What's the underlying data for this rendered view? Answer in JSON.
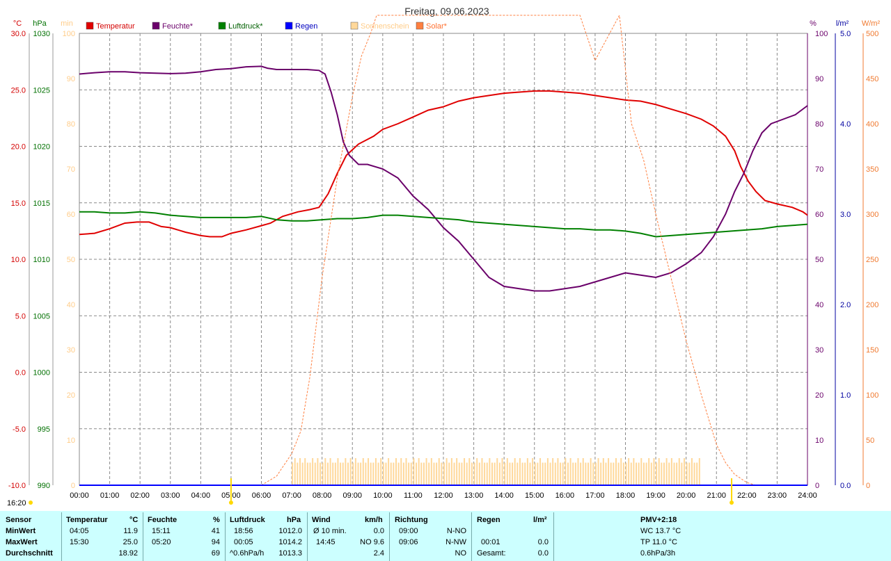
{
  "chart_data": {
    "type": "line",
    "title": "Freitag, 09.06.2023",
    "x_tick_labels": [
      "00:00",
      "01:00",
      "02:00",
      "03:00",
      "04:00",
      "05:00",
      "06:00",
      "07:00",
      "08:00",
      "09:00",
      "10:00",
      "11:00",
      "12:00",
      "13:00",
      "14:00",
      "15:00",
      "16:00",
      "17:00",
      "18:00",
      "19:00",
      "20:00",
      "21:00",
      "22:00",
      "23:00",
      "24:00"
    ],
    "x_range_hours": [
      0,
      24
    ],
    "grid": true,
    "legend_position": "top",
    "axes": {
      "temperature": {
        "unit": "°C",
        "range": [
          -10,
          30
        ],
        "ticks": [
          "30.0",
          "25.0",
          "20.0",
          "15.0",
          "10.0",
          "5.0",
          "0.0",
          "-5.0",
          "-10.0"
        ],
        "color": "#d40000"
      },
      "pressure": {
        "unit": "hPa",
        "range": [
          990,
          1030
        ],
        "ticks": [
          "1030",
          "1025",
          "1020",
          "1015",
          "1010",
          "1005",
          "1000",
          "995",
          "990"
        ],
        "color": "#007000"
      },
      "sunshine": {
        "unit": "min",
        "range": [
          0,
          100
        ],
        "ticks": [
          "100",
          "90",
          "80",
          "70",
          "60",
          "50",
          "40",
          "30",
          "20",
          "10",
          "0"
        ],
        "color": "#ffcc88"
      },
      "humidity": {
        "unit": "%",
        "range": [
          0,
          100
        ],
        "ticks": [
          "100",
          "90",
          "80",
          "70",
          "60",
          "50",
          "40",
          "30",
          "20",
          "10",
          "0"
        ],
        "color": "#6a006a"
      },
      "rain": {
        "unit": "l/m²",
        "range": [
          0,
          5
        ],
        "ticks": [
          "5.0",
          "4.0",
          "3.0",
          "2.0",
          "1.0",
          "0.0"
        ],
        "color": "#0000a0"
      },
      "solar": {
        "unit": "W/m²",
        "range": [
          0,
          500
        ],
        "ticks": [
          "500",
          "450",
          "400",
          "350",
          "300",
          "250",
          "200",
          "150",
          "100",
          "50",
          "0"
        ],
        "color": "#f07a30"
      }
    },
    "legend": [
      {
        "name": "Temperatur",
        "color": "#e00000",
        "text_color": "#d40000"
      },
      {
        "name": "Feuchte*",
        "color": "#6a006a",
        "text_color": "#6a006a"
      },
      {
        "name": "Luftdruck*",
        "color": "#008000",
        "text_color": "#006000"
      },
      {
        "name": "Regen",
        "color": "#0000ff",
        "text_color": "#0000c0"
      },
      {
        "name": "Sonnenschein",
        "color": "#ffd89a",
        "text_color": "#ffcc88"
      },
      {
        "name": "Solar*",
        "color": "#ff7f3f",
        "text_color": "#ff7030"
      }
    ],
    "series": [
      {
        "name": "Temperatur",
        "axis": "temperature",
        "color": "#e00000",
        "x": [
          0,
          0.5,
          1,
          1.5,
          1.9,
          2.3,
          2.7,
          3,
          3.5,
          4,
          4.3,
          4.7,
          5,
          5.5,
          5.9,
          6.3,
          6.7,
          7.2,
          7.6,
          7.9,
          8.2,
          8.5,
          8.8,
          9.2,
          9.7,
          10,
          10.5,
          11,
          11.5,
          12,
          12.5,
          13,
          13.5,
          14,
          14.5,
          15,
          15.5,
          16,
          16.5,
          17,
          17.5,
          18,
          18.5,
          19,
          19.5,
          20,
          20.5,
          20.9,
          21.3,
          21.6,
          21.8,
          22.05,
          22.3,
          22.6,
          23,
          23.5,
          23.85,
          24
        ],
        "y": [
          12.2,
          12.3,
          12.7,
          13.2,
          13.3,
          13.3,
          12.9,
          12.8,
          12.4,
          12.1,
          12.0,
          12.0,
          12.3,
          12.6,
          12.9,
          13.2,
          13.8,
          14.2,
          14.4,
          14.6,
          15.8,
          17.6,
          19.2,
          20.2,
          20.9,
          21.5,
          22.0,
          22.6,
          23.2,
          23.5,
          24.0,
          24.3,
          24.5,
          24.7,
          24.8,
          24.9,
          24.9,
          24.8,
          24.7,
          24.5,
          24.3,
          24.1,
          24.0,
          23.7,
          23.3,
          22.9,
          22.4,
          21.8,
          20.9,
          19.6,
          18.2,
          16.9,
          16.0,
          15.2,
          14.9,
          14.6,
          14.2,
          13.9
        ]
      },
      {
        "name": "Feuchte*",
        "axis": "humidity",
        "color": "#6a006a",
        "x": [
          0,
          0.5,
          1,
          1.5,
          2,
          2.5,
          3,
          3.5,
          4,
          4.5,
          5,
          5.5,
          6,
          6.2,
          6.5,
          7,
          7.5,
          7.9,
          8.1,
          8.3,
          8.5,
          8.7,
          8.9,
          9.2,
          9.5,
          10,
          10.5,
          11,
          11.5,
          12,
          12.5,
          13,
          13.5,
          14,
          14.5,
          15,
          15.5,
          16,
          16.5,
          17,
          17.5,
          18,
          18.5,
          19,
          19.5,
          20,
          20.5,
          20.9,
          21.3,
          21.6,
          21.9,
          22.2,
          22.5,
          22.8,
          23.2,
          23.6,
          24
        ],
        "y": [
          91,
          91.3,
          91.5,
          91.5,
          91.3,
          91.2,
          91.1,
          91.2,
          91.5,
          92,
          92.2,
          92.6,
          92.7,
          92.3,
          92,
          92,
          92,
          91.8,
          91,
          87,
          82,
          76,
          73,
          71,
          71,
          70,
          68,
          64,
          61,
          57,
          54,
          50,
          46,
          44,
          43.5,
          43,
          43,
          43.5,
          44,
          45,
          46,
          47,
          46.5,
          46,
          47,
          49,
          51.5,
          55,
          60,
          65,
          69,
          74,
          78,
          80,
          81,
          82,
          84
        ]
      },
      {
        "name": "Luftdruck*",
        "axis": "pressure",
        "color": "#008000",
        "x": [
          0,
          0.5,
          1,
          1.5,
          2,
          2.5,
          3,
          3.5,
          4,
          4.5,
          5,
          5.5,
          6,
          6.5,
          7,
          7.5,
          8,
          8.5,
          9,
          9.5,
          10,
          10.5,
          11,
          11.5,
          12,
          12.5,
          13,
          13.5,
          14,
          14.5,
          15,
          15.5,
          16,
          16.5,
          17,
          17.5,
          18,
          18.5,
          19,
          19.5,
          20,
          20.5,
          21,
          21.5,
          22,
          22.5,
          23,
          23.5,
          24
        ],
        "y": [
          1014.2,
          1014.2,
          1014.1,
          1014.1,
          1014.2,
          1014.1,
          1013.9,
          1013.8,
          1013.7,
          1013.7,
          1013.7,
          1013.7,
          1013.8,
          1013.5,
          1013.4,
          1013.4,
          1013.5,
          1013.6,
          1013.6,
          1013.7,
          1013.9,
          1013.9,
          1013.8,
          1013.7,
          1013.6,
          1013.5,
          1013.3,
          1013.2,
          1013.1,
          1013.0,
          1012.9,
          1012.8,
          1012.7,
          1012.7,
          1012.6,
          1012.6,
          1012.5,
          1012.3,
          1012.0,
          1012.1,
          1012.2,
          1012.3,
          1012.4,
          1012.5,
          1012.6,
          1012.7,
          1012.9,
          1013.0,
          1013.1
        ]
      },
      {
        "name": "Solar*",
        "axis": "solar",
        "color": "#ff7f3f",
        "x": [
          6,
          6.5,
          7,
          7.3,
          7.6,
          8,
          8.5,
          9,
          9.3,
          9.6,
          9.8,
          16.5,
          16.7,
          17,
          17.8,
          18.2,
          18.6,
          19,
          19.5,
          20,
          20.5,
          21,
          21.3,
          21.6,
          22,
          22.3
        ],
        "y": [
          0,
          10,
          35,
          60,
          120,
          230,
          340,
          430,
          475,
          500,
          520,
          520,
          500,
          470,
          520,
          400,
          360,
          300,
          230,
          160,
          100,
          45,
          25,
          12,
          3,
          0
        ]
      },
      {
        "name": "Regen",
        "axis": "rain",
        "color": "#0000ff",
        "x": [
          0,
          24
        ],
        "y": [
          0,
          0
        ]
      }
    ],
    "sunshine_bars": {
      "from": "07:00",
      "to": "20:25",
      "minutes_per_bar_approx": [
        5,
        6,
        5,
        6,
        5,
        6,
        5,
        5,
        6,
        5,
        6,
        5,
        5,
        6,
        5,
        6,
        5,
        5,
        6,
        5
      ]
    }
  },
  "header": {
    "left_label": "16:20",
    "sunrise_marker": "05:00",
    "sunset_marker": "21:30",
    "sunrise_marker_color": "#ffd800"
  },
  "table": {
    "sensor": {
      "header": "Sensor",
      "rows": [
        "MinWert",
        "MaxWert",
        "Durchschnitt"
      ]
    },
    "temperature": {
      "header": "Temperatur",
      "unit": "°C",
      "min_time": "04:05",
      "min": "11.9",
      "max_time": "15:30",
      "max": "25.0",
      "avg": "18.92"
    },
    "humidity": {
      "header": "Feuchte",
      "unit": "%",
      "min_time": "15:11",
      "min": "41",
      "max_time": "05:20",
      "max": "94",
      "avg": "69"
    },
    "pressure": {
      "header": "Luftdruck",
      "unit": "hPa",
      "min_time": "18:56",
      "min": "1012.0",
      "max_time": "00:05",
      "max": "1014.2",
      "avg_label": "^0.6hPa/h",
      "avg": "1013.3"
    },
    "wind": {
      "header": "Wind",
      "unit": "km/h",
      "r1_label": "Ø 10 min.",
      "r1": "0.0",
      "r2_label": "14:45",
      "r2": "NO 9.6",
      "r3": "2.4"
    },
    "direction": {
      "header": "Richtung",
      "r1_time": "09:00",
      "r1": "N-NO",
      "r2_time": "09:06",
      "r2": "N-NW",
      "r3": "NO"
    },
    "rain": {
      "header": "Regen",
      "unit": "l/m²",
      "r2_time": "00:01",
      "r2": "0.0",
      "r3_label": "Gesamt:",
      "r3": "0.0"
    },
    "pmv": {
      "header": "PMV+2:18",
      "r1": "WC 13.7 °C",
      "r2": "TP 11.0 °C",
      "r3": "0.6hPa/3h"
    }
  }
}
